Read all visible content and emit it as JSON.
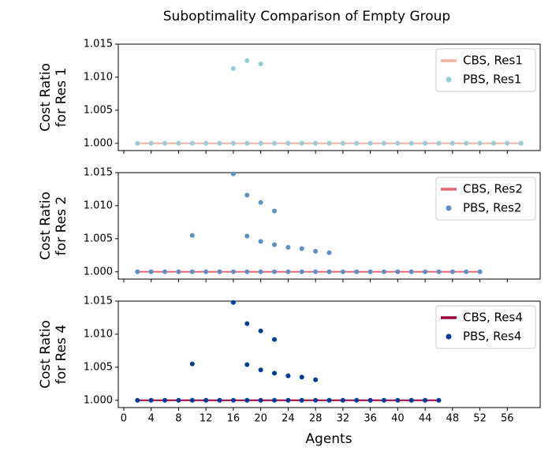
{
  "title": "Suboptimality Comparison of Empty Group",
  "xlabel": "Agents",
  "chart_data": [
    {
      "type": "scatter",
      "ylabel": [
        "Cost Ratio",
        "for Res 1"
      ],
      "xlim": [
        -0.8,
        60.8
      ],
      "ylim": [
        0.9989,
        1.015
      ],
      "yticks": [
        {
          "value": 1,
          "label": "1.000"
        },
        1.005,
        {
          "value": 1.01,
          "label": "1.010"
        },
        1.015
      ],
      "legend": "upper right",
      "series": [
        {
          "name": "CBS, Res1",
          "type": "line",
          "color": "#f4b3a2",
          "x": [
            2,
            4,
            6,
            8,
            10,
            12,
            14,
            16,
            18,
            20,
            22,
            24,
            26,
            28,
            30,
            32,
            34,
            36,
            38,
            40,
            42,
            44,
            46,
            48,
            50,
            52,
            54,
            56,
            58
          ],
          "values": [
            1,
            1,
            1,
            1,
            1,
            1,
            1,
            1,
            1,
            1,
            1,
            1,
            1,
            1,
            1,
            1,
            1,
            1,
            1,
            1,
            1,
            1,
            1,
            1,
            1,
            1,
            1,
            1,
            1
          ]
        },
        {
          "name": "PBS, Res1",
          "type": "scatter",
          "color": "#96cdd4",
          "x": [
            2,
            4,
            6,
            8,
            10,
            12,
            14,
            16,
            18,
            20,
            22,
            24,
            26,
            28,
            30,
            32,
            34,
            36,
            38,
            40,
            42,
            44,
            46,
            48,
            50,
            52,
            54,
            56,
            58,
            16,
            18,
            20
          ],
          "values": [
            1,
            1,
            1,
            1,
            1,
            1,
            1,
            1,
            1,
            1,
            1,
            1,
            1,
            1,
            1,
            1,
            1,
            1,
            1,
            1,
            1,
            1,
            1,
            1,
            1,
            1,
            1,
            1,
            1,
            1.0113,
            1.0125,
            1.012
          ]
        }
      ]
    },
    {
      "type": "scatter",
      "ylabel": [
        "Cost Ratio",
        "for Res 2"
      ],
      "xlim": [
        -0.8,
        60.8
      ],
      "ylim": [
        0.9989,
        1.015
      ],
      "yticks": [
        {
          "value": 1,
          "label": "1.000"
        },
        1.005,
        {
          "value": 1.01,
          "label": "1.010"
        },
        1.015
      ],
      "legend": "upper right",
      "series": [
        {
          "name": "CBS, Res2",
          "type": "line",
          "color": "#e8687a",
          "x": [
            2,
            4,
            6,
            8,
            10,
            12,
            14,
            16,
            18,
            20,
            22,
            24,
            26,
            28,
            30,
            32,
            34,
            36,
            38,
            40,
            42,
            44,
            46,
            48,
            50,
            52
          ],
          "values": [
            1,
            1,
            1,
            1,
            1,
            1,
            1,
            1,
            1,
            1,
            1,
            1,
            1,
            1,
            1,
            1,
            1,
            1,
            1,
            1,
            1,
            1,
            1,
            1,
            1,
            1
          ]
        },
        {
          "name": "PBS, Res2",
          "type": "scatter",
          "color": "#6090c0",
          "x": [
            2,
            4,
            6,
            8,
            10,
            12,
            14,
            16,
            18,
            20,
            22,
            24,
            26,
            28,
            30,
            32,
            34,
            36,
            38,
            40,
            42,
            44,
            46,
            48,
            50,
            52,
            10,
            16,
            18,
            20,
            22,
            18,
            20,
            22,
            24,
            26,
            28,
            30
          ],
          "values": [
            1,
            1,
            1,
            1,
            1,
            1,
            1,
            1,
            1,
            1,
            1,
            1,
            1,
            1,
            1,
            1,
            1,
            1,
            1,
            1,
            1,
            1,
            1,
            1,
            1,
            1,
            1.0055,
            1.0148,
            1.0116,
            1.0105,
            1.0092,
            1.0054,
            1.0046,
            1.0041,
            1.0037,
            1.0035,
            1.0031,
            1.0029
          ]
        }
      ]
    },
    {
      "type": "scatter",
      "ylabel": [
        "Cost Ratio",
        "for Res 4"
      ],
      "xlim": [
        -0.8,
        60.8
      ],
      "ylim": [
        0.9989,
        1.015
      ],
      "yticks": [
        {
          "value": 1,
          "label": "1.000"
        },
        1.005,
        {
          "value": 1.01,
          "label": "1.010"
        },
        1.015
      ],
      "xticks": [
        0,
        4,
        8,
        12,
        16,
        20,
        24,
        28,
        32,
        36,
        40,
        44,
        48,
        52,
        56
      ],
      "legend": "upper right",
      "series": [
        {
          "name": "CBS, Res4",
          "type": "line",
          "color": "#9e003a",
          "x": [
            2,
            4,
            6,
            8,
            10,
            12,
            14,
            16,
            18,
            20,
            22,
            24,
            26,
            28,
            30,
            32,
            34,
            36,
            38,
            40,
            42,
            44,
            46
          ],
          "values": [
            1,
            1,
            1,
            1,
            1,
            1,
            1,
            1,
            1,
            1,
            1,
            1,
            1,
            1,
            1,
            1,
            1,
            1,
            1,
            1,
            1,
            1,
            1
          ]
        },
        {
          "name": "PBS, Res4",
          "type": "scatter",
          "color": "#003c96",
          "x": [
            2,
            4,
            6,
            8,
            10,
            12,
            14,
            16,
            18,
            20,
            22,
            24,
            26,
            28,
            30,
            32,
            34,
            36,
            38,
            40,
            42,
            44,
            46,
            10,
            16,
            18,
            20,
            22,
            18,
            20,
            22,
            24,
            26,
            28
          ],
          "values": [
            1,
            1,
            1,
            1,
            1,
            1,
            1,
            1,
            1,
            1,
            1,
            1,
            1,
            1,
            1,
            1,
            1,
            1,
            1,
            1,
            1,
            1,
            1,
            1.0055,
            1.0148,
            1.0116,
            1.0105,
            1.0092,
            1.0054,
            1.0046,
            1.0041,
            1.0037,
            1.0035,
            1.0031
          ]
        }
      ]
    }
  ]
}
